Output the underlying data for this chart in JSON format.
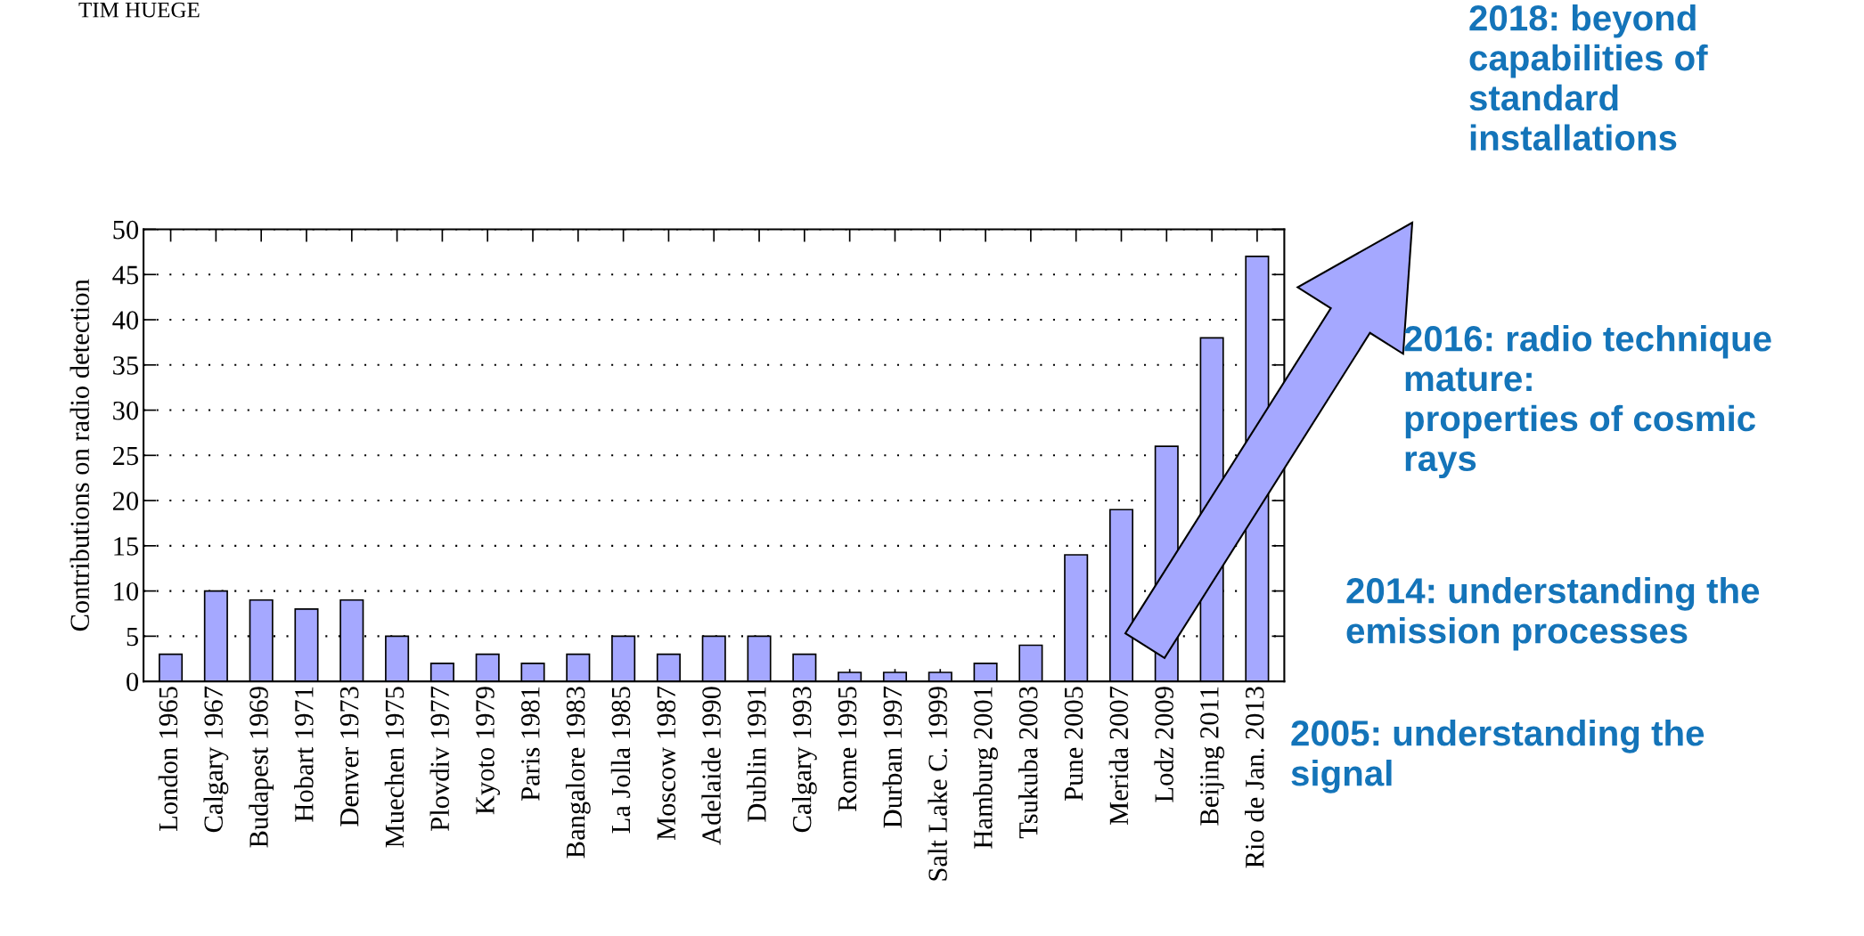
{
  "chart_data": {
    "type": "bar",
    "categories": [
      "London 1965",
      "Calgary 1967",
      "Budapest 1969",
      "Hobart 1971",
      "Denver 1973",
      "Muechen 1975",
      "Plovdiv 1977",
      "Kyoto 1979",
      "Paris 1981",
      "Bangalore 1983",
      "La Jolla 1985",
      "Moscow 1987",
      "Adelaide 1990",
      "Dublin 1991",
      "Calgary 1993",
      "Rome 1995",
      "Durban 1997",
      "Salt Lake C. 1999",
      "Hamburg 2001",
      "Tsukuba 2003",
      "Pune 2005",
      "Merida 2007",
      "Lodz 2009",
      "Beijing 2011",
      "Rio de Jan. 2013"
    ],
    "values": [
      3,
      10,
      9,
      8,
      9,
      5,
      2,
      3,
      2,
      3,
      5,
      3,
      5,
      5,
      3,
      1,
      1,
      1,
      2,
      4,
      14,
      19,
      26,
      38,
      47
    ],
    "color": "#a5a8ff",
    "ylabel": "Contributions on radio detection",
    "ylim": [
      0,
      50
    ],
    "yticks": [
      0,
      5,
      10,
      15,
      20,
      25,
      30,
      35,
      40,
      45,
      50
    ],
    "grid": "y",
    "annotations": [
      "TIM HUEGE",
      "2018: beyond\ncapabilities of\nstandard\ninstallations",
      "2016: radio technique\nmature:\nproperties of cosmic\nrays",
      "2014: understanding the\nemission processes",
      "2005: understanding the\nsignal"
    ]
  }
}
